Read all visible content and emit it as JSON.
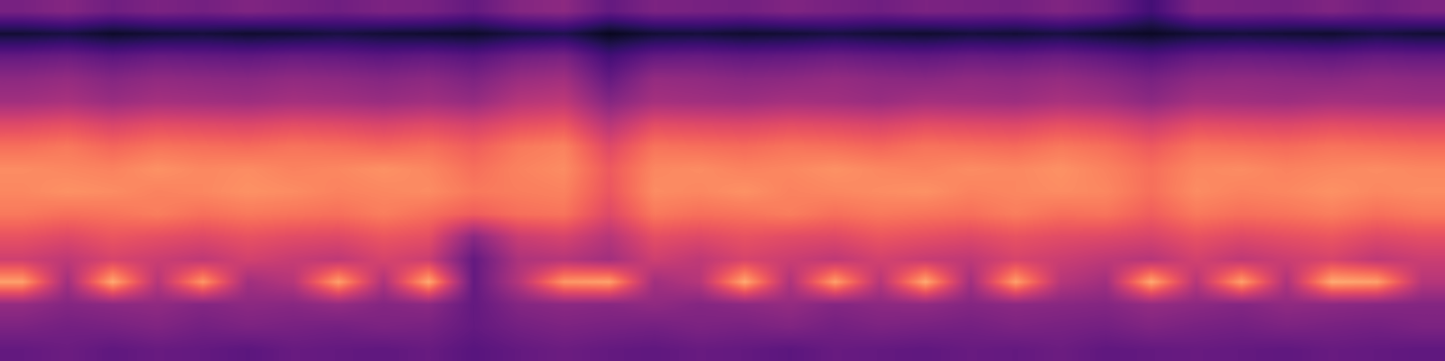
{
  "chart_data": {
    "type": "heatmap",
    "tick_labels": false,
    "clim": [
      0,
      1
    ],
    "cells": [
      [
        0.35,
        0.38,
        0.33,
        0.36,
        0.34,
        0.37,
        0.35,
        0.33,
        0.36,
        0.35,
        0.3,
        0.38,
        0.4,
        0.3,
        0.36,
        0.35,
        0.34,
        0.37,
        0.35,
        0.33,
        0.36,
        0.35,
        0.34,
        0.37,
        0.33,
        0.22,
        0.36,
        0.35,
        0.34,
        0.37,
        0.33,
        0.36
      ],
      [
        0.1,
        0.12,
        0.08,
        0.1,
        0.11,
        0.09,
        0.1,
        0.12,
        0.1,
        0.09,
        0.08,
        0.12,
        0.14,
        0.06,
        0.1,
        0.11,
        0.09,
        0.1,
        0.12,
        0.1,
        0.09,
        0.11,
        0.1,
        0.12,
        0.09,
        0.07,
        0.1,
        0.11,
        0.1,
        0.09,
        0.12,
        0.1
      ],
      [
        0.3,
        0.32,
        0.28,
        0.31,
        0.3,
        0.29,
        0.31,
        0.3,
        0.28,
        0.3,
        0.27,
        0.33,
        0.35,
        0.22,
        0.3,
        0.31,
        0.29,
        0.3,
        0.32,
        0.3,
        0.29,
        0.31,
        0.3,
        0.32,
        0.29,
        0.25,
        0.3,
        0.31,
        0.3,
        0.29,
        0.31,
        0.3
      ],
      [
        0.4,
        0.42,
        0.38,
        0.41,
        0.4,
        0.39,
        0.41,
        0.4,
        0.38,
        0.4,
        0.36,
        0.43,
        0.45,
        0.3,
        0.42,
        0.41,
        0.39,
        0.4,
        0.42,
        0.4,
        0.39,
        0.41,
        0.4,
        0.42,
        0.39,
        0.35,
        0.4,
        0.41,
        0.4,
        0.39,
        0.41,
        0.4
      ],
      [
        0.45,
        0.47,
        0.43,
        0.46,
        0.45,
        0.44,
        0.46,
        0.45,
        0.43,
        0.45,
        0.42,
        0.5,
        0.52,
        0.38,
        0.46,
        0.45,
        0.44,
        0.46,
        0.45,
        0.43,
        0.46,
        0.45,
        0.44,
        0.47,
        0.45,
        0.4,
        0.46,
        0.45,
        0.44,
        0.46,
        0.45,
        0.44
      ],
      [
        0.6,
        0.62,
        0.58,
        0.61,
        0.6,
        0.59,
        0.61,
        0.6,
        0.58,
        0.6,
        0.57,
        0.62,
        0.64,
        0.5,
        0.61,
        0.6,
        0.59,
        0.61,
        0.6,
        0.58,
        0.61,
        0.6,
        0.59,
        0.62,
        0.6,
        0.55,
        0.61,
        0.6,
        0.59,
        0.61,
        0.6,
        0.59
      ],
      [
        0.7,
        0.72,
        0.68,
        0.71,
        0.7,
        0.69,
        0.71,
        0.7,
        0.68,
        0.7,
        0.66,
        0.72,
        0.74,
        0.6,
        0.71,
        0.7,
        0.69,
        0.71,
        0.7,
        0.68,
        0.71,
        0.7,
        0.69,
        0.72,
        0.7,
        0.65,
        0.71,
        0.7,
        0.69,
        0.71,
        0.7,
        0.69
      ],
      [
        0.76,
        0.75,
        0.74,
        0.77,
        0.75,
        0.76,
        0.74,
        0.75,
        0.77,
        0.75,
        0.7,
        0.74,
        0.76,
        0.65,
        0.75,
        0.76,
        0.74,
        0.75,
        0.77,
        0.75,
        0.74,
        0.76,
        0.75,
        0.77,
        0.74,
        0.7,
        0.75,
        0.76,
        0.74,
        0.75,
        0.76,
        0.75
      ],
      [
        0.75,
        0.77,
        0.76,
        0.74,
        0.75,
        0.77,
        0.76,
        0.74,
        0.75,
        0.76,
        0.72,
        0.73,
        0.74,
        0.64,
        0.76,
        0.75,
        0.77,
        0.74,
        0.75,
        0.76,
        0.77,
        0.74,
        0.75,
        0.76,
        0.75,
        0.7,
        0.76,
        0.74,
        0.75,
        0.77,
        0.75,
        0.76
      ],
      [
        0.72,
        0.7,
        0.71,
        0.73,
        0.7,
        0.72,
        0.71,
        0.7,
        0.73,
        0.7,
        0.66,
        0.7,
        0.71,
        0.6,
        0.72,
        0.7,
        0.71,
        0.73,
        0.7,
        0.72,
        0.71,
        0.7,
        0.73,
        0.7,
        0.71,
        0.66,
        0.72,
        0.7,
        0.71,
        0.73,
        0.7,
        0.72
      ],
      [
        0.63,
        0.6,
        0.64,
        0.62,
        0.6,
        0.63,
        0.61,
        0.6,
        0.64,
        0.62,
        0.4,
        0.55,
        0.58,
        0.5,
        0.62,
        0.6,
        0.63,
        0.61,
        0.6,
        0.64,
        0.62,
        0.6,
        0.63,
        0.61,
        0.6,
        0.58,
        0.63,
        0.6,
        0.62,
        0.64,
        0.6,
        0.62
      ],
      [
        0.56,
        0.52,
        0.58,
        0.55,
        0.52,
        0.57,
        0.54,
        0.52,
        0.58,
        0.55,
        0.3,
        0.48,
        0.5,
        0.45,
        0.56,
        0.52,
        0.58,
        0.55,
        0.52,
        0.57,
        0.54,
        0.52,
        0.58,
        0.55,
        0.52,
        0.5,
        0.57,
        0.52,
        0.55,
        0.58,
        0.52,
        0.55
      ],
      [
        0.8,
        0.45,
        0.82,
        0.5,
        0.78,
        0.45,
        0.5,
        0.8,
        0.48,
        0.82,
        0.3,
        0.5,
        0.78,
        0.8,
        0.45,
        0.5,
        0.82,
        0.48,
        0.8,
        0.5,
        0.82,
        0.45,
        0.8,
        0.5,
        0.45,
        0.82,
        0.5,
        0.8,
        0.48,
        0.82,
        0.8,
        0.5
      ],
      [
        0.42,
        0.38,
        0.4,
        0.41,
        0.38,
        0.4,
        0.39,
        0.42,
        0.38,
        0.4,
        0.3,
        0.38,
        0.4,
        0.39,
        0.41,
        0.38,
        0.4,
        0.42,
        0.38,
        0.4,
        0.41,
        0.38,
        0.4,
        0.39,
        0.38,
        0.42,
        0.4,
        0.38,
        0.41,
        0.4,
        0.39,
        0.38
      ],
      [
        0.36,
        0.34,
        0.35,
        0.37,
        0.34,
        0.36,
        0.35,
        0.34,
        0.36,
        0.35,
        0.3,
        0.34,
        0.36,
        0.35,
        0.34,
        0.36,
        0.35,
        0.37,
        0.34,
        0.36,
        0.35,
        0.34,
        0.36,
        0.35,
        0.34,
        0.37,
        0.35,
        0.34,
        0.36,
        0.35,
        0.34,
        0.36
      ],
      [
        0.3,
        0.32,
        0.29,
        0.31,
        0.3,
        0.28,
        0.31,
        0.3,
        0.29,
        0.31,
        0.27,
        0.3,
        0.32,
        0.3,
        0.29,
        0.31,
        0.3,
        0.28,
        0.31,
        0.3,
        0.29,
        0.31,
        0.3,
        0.32,
        0.29,
        0.3,
        0.31,
        0.3,
        0.29,
        0.31,
        0.3,
        0.29
      ]
    ]
  }
}
